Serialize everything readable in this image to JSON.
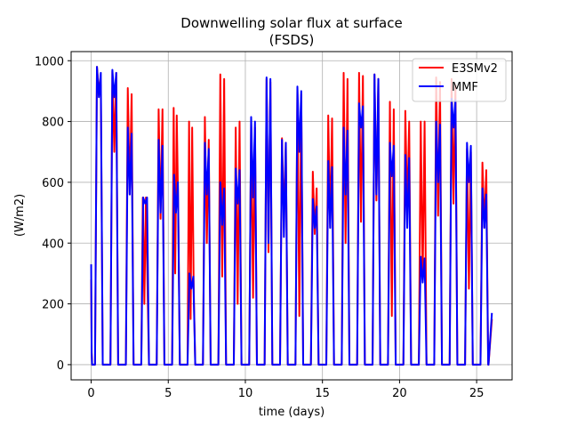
{
  "chart_data": {
    "type": "line",
    "title_line1": "Downwelling solar flux at surface",
    "title_line2": "(FSDS)",
    "xlabel": "time (days)",
    "ylabel": "(W/m2)",
    "xlim": [
      -1.3,
      27.3
    ],
    "ylim": [
      -50,
      1030
    ],
    "xticks": [
      0,
      5,
      10,
      15,
      20,
      25
    ],
    "yticks": [
      0,
      200,
      400,
      600,
      800,
      1000
    ],
    "grid": true,
    "legend_position": "top-right",
    "series": [
      {
        "name": "E3SMv2",
        "color": "#ff0000",
        "start": 280,
        "end": 150,
        "days": [
          [
            980,
            900,
            920
          ],
          [
            965,
            700,
            960
          ],
          [
            910,
            560,
            890
          ],
          [
            550,
            200,
            550,
            270
          ],
          [
            840,
            480,
            840
          ],
          [
            845,
            300,
            820,
            500
          ],
          [
            800,
            150,
            780,
            250
          ],
          [
            815,
            400,
            740
          ],
          [
            955,
            290,
            940
          ],
          [
            780,
            200,
            800
          ],
          [
            800,
            220,
            780
          ],
          [
            940,
            370,
            930
          ],
          [
            745,
            480,
            730
          ],
          [
            910,
            160,
            890
          ],
          [
            635,
            430,
            580
          ],
          [
            820,
            450,
            810
          ],
          [
            960,
            400,
            940
          ],
          [
            960,
            470,
            950
          ],
          [
            955,
            540,
            940
          ],
          [
            865,
            160,
            840
          ],
          [
            835,
            500,
            800
          ],
          [
            800,
            280,
            800
          ],
          [
            945,
            490,
            930
          ],
          [
            940,
            530,
            920
          ],
          [
            710,
            250,
            700
          ],
          [
            665,
            450,
            640
          ]
        ]
      },
      {
        "name": "MMF",
        "color": "#0000ff",
        "start": 330,
        "end": 170,
        "days": [
          [
            980,
            880,
            960
          ],
          [
            970,
            880,
            960
          ],
          [
            780,
            560,
            760
          ],
          [
            550,
            530,
            550
          ],
          [
            740,
            500,
            720
          ],
          [
            625,
            500,
            600
          ],
          [
            300,
            250,
            290
          ],
          [
            730,
            560,
            710
          ],
          [
            600,
            460,
            580
          ],
          [
            645,
            530,
            640
          ],
          [
            815,
            550,
            800
          ],
          [
            945,
            400,
            940
          ],
          [
            740,
            420,
            730
          ],
          [
            915,
            700,
            900
          ],
          [
            545,
            450,
            520
          ],
          [
            670,
            450,
            650
          ],
          [
            780,
            560,
            770
          ],
          [
            860,
            780,
            850
          ],
          [
            955,
            560,
            940
          ],
          [
            730,
            620,
            720
          ],
          [
            690,
            450,
            680
          ],
          [
            355,
            270,
            350
          ],
          [
            800,
            600,
            790
          ],
          [
            875,
            780,
            870
          ],
          [
            730,
            600,
            720
          ],
          [
            580,
            450,
            560
          ]
        ]
      }
    ]
  }
}
